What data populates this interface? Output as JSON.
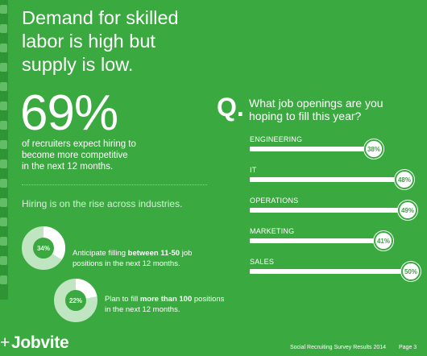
{
  "page": {
    "headline": "Demand for skilled\nlabor is high but\nsupply is low.",
    "big_stat": "69%",
    "stat_desc": "of recruiters expect hiring to\nbecome more competitive\nin the next 12 months.",
    "hiring_title": "Hiring is on the rise across industries.",
    "donuts": [
      {
        "value": 34,
        "label": "34%",
        "text_pre": "Anticipate filling ",
        "text_bold": "between 11-50",
        "text_post": " job\npositions in the next 12 months."
      },
      {
        "value": 22,
        "label": "22%",
        "text_pre": "Plan to fill ",
        "text_bold": "more than 100",
        "text_post": " positions\nin the next 12 months."
      }
    ],
    "question_mark": "Q.",
    "question": "What job openings are you\nhoping to fill this year?",
    "footer": {
      "logo_plus": "+",
      "logo": "Jobvite",
      "survey": "Social Recruiting Survey Results 2014",
      "page": "Page 3"
    }
  },
  "colors": {
    "background": "#3aa93f",
    "donut_track": "#bfe6c0",
    "donut_fill": "#ffffff"
  },
  "icons": [
    "facebook-icon",
    "facebook-icon",
    "twitter-icon",
    "linkedin-icon",
    "facebook-icon",
    "thumbs-up-icon",
    "twitter-icon",
    "linkedin-icon",
    "star-icon",
    "twitter-icon",
    "facebook-icon",
    "twitter-icon",
    "linkedin-icon",
    "share-icon",
    "plus-icon"
  ],
  "chart_data": {
    "type": "bar",
    "title": "What job openings are you hoping to fill this year?",
    "categories": [
      "ENGINEERING",
      "IT",
      "OPERATIONS",
      "MARKETING",
      "SALES"
    ],
    "values": [
      38,
      48,
      49,
      41,
      50
    ],
    "labels": [
      "38%",
      "48%",
      "49%",
      "41%",
      "50%"
    ],
    "ylim": [
      0,
      50
    ],
    "grid": false
  }
}
